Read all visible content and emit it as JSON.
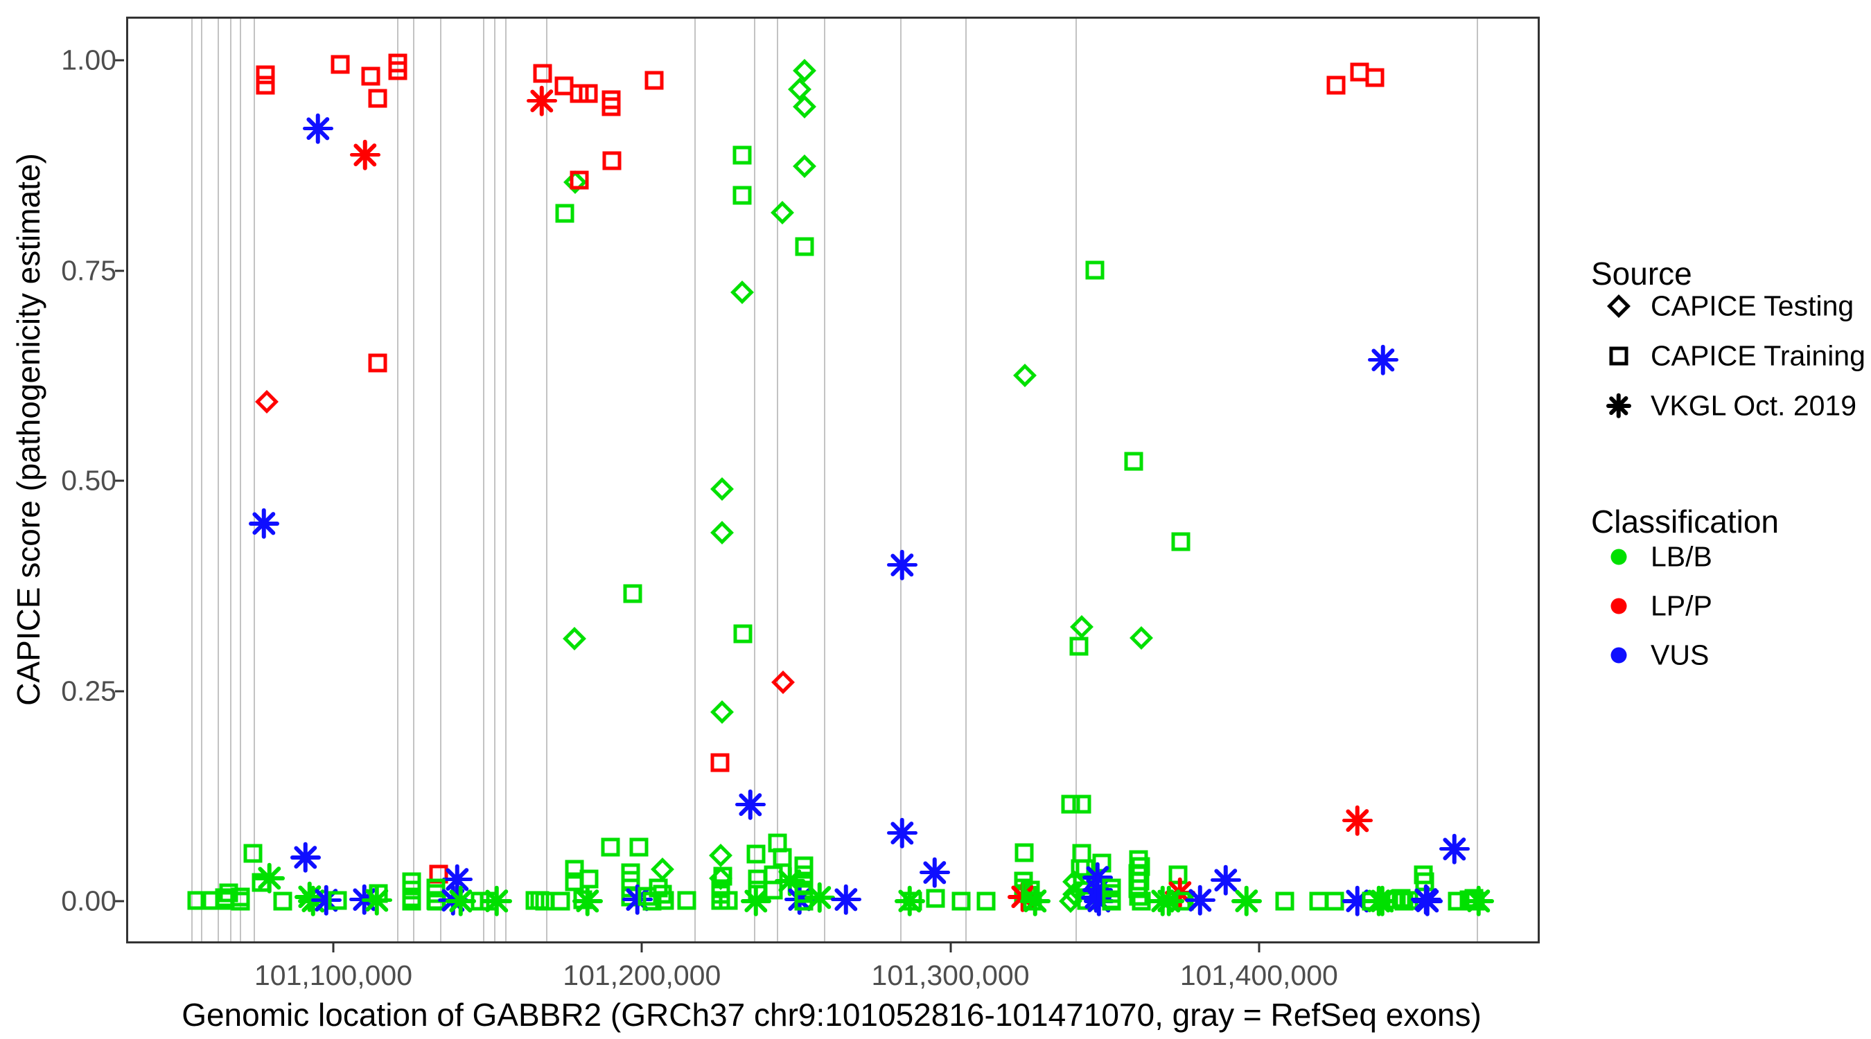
{
  "figure": {
    "kind": "ggplot-style scatter plot",
    "background": "#ffffff",
    "panel_border_color": "#333333",
    "exon_line_color": "#c3c3c3",
    "tick_label_color": "#4d4d4d"
  },
  "axes": {
    "x": {
      "label": "Genomic location of GABBR2 (GRCh37 chr9:101052816-101471070, gray = RefSeq exons)",
      "ticks": [
        {
          "value": 101100000,
          "label": "101,100,000"
        },
        {
          "value": 101200000,
          "label": "101,200,000"
        },
        {
          "value": 101300000,
          "label": "101,300,000"
        },
        {
          "value": 101400000,
          "label": "101,400,000"
        }
      ],
      "range": [
        101032850,
        101490990
      ]
    },
    "y": {
      "label": "CAPICE score (pathogenicity estimate)",
      "ticks": [
        {
          "value": 1.0,
          "label": "1.00"
        },
        {
          "value": 0.75,
          "label": "0.75"
        },
        {
          "value": 0.5,
          "label": "0.50"
        },
        {
          "value": 0.25,
          "label": "0.25"
        },
        {
          "value": 0.0,
          "label": "0.00"
        }
      ],
      "range": [
        -0.0503,
        1.0522
      ]
    }
  },
  "legend": {
    "source": {
      "title": "Source",
      "items": [
        {
          "label": "CAPICE Testing",
          "marker": "d"
        },
        {
          "label": "CAPICE Training",
          "marker": "s"
        },
        {
          "label": "VKGL Oct. 2019",
          "marker": "a"
        }
      ]
    },
    "classification": {
      "title": "Classification",
      "items": [
        {
          "label": "LB/B",
          "class": "g"
        },
        {
          "label": "LP/P",
          "class": "r"
        },
        {
          "label": "VUS",
          "class": "b"
        }
      ]
    }
  },
  "colors": {
    "g": "#00e000",
    "r": "#ff0000",
    "b": "#0f0fff",
    "legend_marker": "#000000"
  },
  "exons_bp": [
    101053500,
    101056700,
    101062050,
    101066100,
    101069250,
    101073700,
    101120200,
    101125400,
    101134100,
    101148050,
    101151650,
    101155250,
    101168500,
    101216550,
    101235900,
    101243300,
    101258550,
    101283250,
    101304400,
    101340100,
    101470150
  ],
  "chart_data": {
    "type": "scatter",
    "x_axis": "genomic position (bp, GRCh37 chr9)",
    "y_axis": "CAPICE score",
    "xlim": [
      101032850,
      101490990
    ],
    "ylim": [
      0,
      1
    ],
    "grid": "vertical gray exon lines only",
    "legend_position": "right",
    "marker_key": {
      "d": "CAPICE Testing (open diamond)",
      "s": "CAPICE Training (open square)",
      "a": "VKGL Oct. 2019 (asterisk)"
    },
    "class_key": {
      "g": "LB/B (green)",
      "r": "LP/P (red)",
      "b": "VUS (blue)"
    },
    "points": [
      [
        101078100,
        0.983,
        "s",
        "r"
      ],
      [
        101078100,
        0.971,
        "s",
        "r"
      ],
      [
        101102200,
        0.995,
        "s",
        "r"
      ],
      [
        101112200,
        0.981,
        "s",
        "r"
      ],
      [
        101114400,
        0.955,
        "s",
        "r"
      ],
      [
        101120800,
        0.997,
        "s",
        "r"
      ],
      [
        101120800,
        0.988,
        "s",
        "r"
      ],
      [
        101094970,
        0.919,
        "a",
        "b"
      ],
      [
        101110350,
        0.888,
        "a",
        "r"
      ],
      [
        101114400,
        0.64,
        "s",
        "r"
      ],
      [
        101078400,
        0.594,
        "d",
        "r"
      ],
      [
        101077500,
        0.449,
        "a",
        "b"
      ],
      [
        101167800,
        0.985,
        "s",
        "r"
      ],
      [
        101167700,
        0.952,
        "a",
        "r"
      ],
      [
        101174800,
        0.97,
        "s",
        "r"
      ],
      [
        101179800,
        0.961,
        "s",
        "r"
      ],
      [
        101182600,
        0.961,
        "s",
        "r"
      ],
      [
        101190000,
        0.953,
        "s",
        "r"
      ],
      [
        101190000,
        0.945,
        "s",
        "r"
      ],
      [
        101203900,
        0.976,
        "s",
        "r"
      ],
      [
        101178400,
        0.855,
        "d",
        "g"
      ],
      [
        101179800,
        0.858,
        "s",
        "r"
      ],
      [
        101190200,
        0.881,
        "s",
        "r"
      ],
      [
        101175000,
        0.818,
        "s",
        "g"
      ],
      [
        101232400,
        0.887,
        "s",
        "g"
      ],
      [
        101232400,
        0.84,
        "s",
        "g"
      ],
      [
        101252800,
        0.988,
        "d",
        "g"
      ],
      [
        101251200,
        0.966,
        "d",
        "g"
      ],
      [
        101252800,
        0.945,
        "d",
        "g"
      ],
      [
        101252600,
        0.874,
        "d",
        "g"
      ],
      [
        101245600,
        0.819,
        "d",
        "g"
      ],
      [
        101252600,
        0.779,
        "s",
        "g"
      ],
      [
        101232400,
        0.724,
        "d",
        "g"
      ],
      [
        101225900,
        0.49,
        "d",
        "g"
      ],
      [
        101225900,
        0.438,
        "d",
        "g"
      ],
      [
        101197000,
        0.366,
        "s",
        "g"
      ],
      [
        101178200,
        0.312,
        "d",
        "g"
      ],
      [
        101232700,
        0.318,
        "s",
        "g"
      ],
      [
        101245800,
        0.26,
        "d",
        "r"
      ],
      [
        101225900,
        0.225,
        "d",
        "g"
      ],
      [
        101225400,
        0.165,
        "s",
        "r"
      ],
      [
        101235300,
        0.115,
        "a",
        "b"
      ],
      [
        101284400,
        0.4,
        "a",
        "b"
      ],
      [
        101324100,
        0.625,
        "d",
        "g"
      ],
      [
        101346700,
        0.751,
        "s",
        "g"
      ],
      [
        101359300,
        0.523,
        "s",
        "g"
      ],
      [
        101374700,
        0.428,
        "s",
        "g"
      ],
      [
        101342600,
        0.326,
        "d",
        "g"
      ],
      [
        101361800,
        0.313,
        "d",
        "g"
      ],
      [
        101341700,
        0.303,
        "s",
        "g"
      ],
      [
        101424900,
        0.971,
        "s",
        "r"
      ],
      [
        101432600,
        0.986,
        "s",
        "r"
      ],
      [
        101437600,
        0.98,
        "s",
        "r"
      ],
      [
        101440200,
        0.644,
        "a",
        "b"
      ],
      [
        101431900,
        0.096,
        "a",
        "r"
      ],
      [
        101074000,
        0.057,
        "s",
        "g"
      ],
      [
        101091000,
        0.052,
        "a",
        "b"
      ],
      [
        101076700,
        0.022,
        "s",
        "g"
      ],
      [
        101079300,
        0.027,
        "a",
        "g"
      ],
      [
        101055800,
        0.001,
        "s",
        "g"
      ],
      [
        101060000,
        0.001,
        "s",
        "g"
      ],
      [
        101064700,
        0.004,
        "s",
        "g"
      ],
      [
        101066000,
        0.01,
        "s",
        "g"
      ],
      [
        101064900,
        0.001,
        "s",
        "g"
      ],
      [
        101069800,
        0.005,
        "s",
        "g"
      ],
      [
        101069800,
        0.0,
        "s",
        "g"
      ],
      [
        101083700,
        0.0,
        "s",
        "g"
      ],
      [
        101092300,
        0.005,
        "a",
        "g"
      ],
      [
        101093400,
        0.0,
        "a",
        "g"
      ],
      [
        101097800,
        0.001,
        "a",
        "b"
      ],
      [
        101101300,
        0.001,
        "s",
        "g"
      ],
      [
        101110100,
        0.002,
        "a",
        "b"
      ],
      [
        101114500,
        0.009,
        "s",
        "g"
      ],
      [
        101114100,
        0.001,
        "a",
        "g"
      ],
      [
        101125400,
        0.023,
        "s",
        "g"
      ],
      [
        101125400,
        0.013,
        "s",
        "g"
      ],
      [
        101125400,
        0.004,
        "s",
        "g"
      ],
      [
        101125400,
        0.0,
        "s",
        "g"
      ],
      [
        101134200,
        0.032,
        "s",
        "r"
      ],
      [
        101140100,
        0.026,
        "a",
        "b"
      ],
      [
        101133200,
        0.016,
        "s",
        "g"
      ],
      [
        101133200,
        0.009,
        "s",
        "g"
      ],
      [
        101133200,
        0.001,
        "s",
        "g"
      ],
      [
        101133400,
        0.0,
        "s",
        "g"
      ],
      [
        101138800,
        0.001,
        "a",
        "b"
      ],
      [
        101141300,
        0.0,
        "a",
        "g"
      ],
      [
        101147700,
        0.0,
        "s",
        "g"
      ],
      [
        101150500,
        0.0,
        "s",
        "g"
      ],
      [
        101152900,
        0.0,
        "a",
        "g"
      ],
      [
        101165300,
        0.001,
        "s",
        "g"
      ],
      [
        101166900,
        0.001,
        "s",
        "g"
      ],
      [
        101168500,
        0.0,
        "s",
        "g"
      ],
      [
        101173700,
        0.0,
        "s",
        "g"
      ],
      [
        101180900,
        0.002,
        "s",
        "g"
      ],
      [
        101182500,
        0.0,
        "a",
        "g"
      ],
      [
        101189800,
        0.064,
        "s",
        "g"
      ],
      [
        101199000,
        0.064,
        "s",
        "g"
      ],
      [
        101178100,
        0.038,
        "s",
        "g"
      ],
      [
        101178100,
        0.023,
        "s",
        "g"
      ],
      [
        101182900,
        0.026,
        "s",
        "g"
      ],
      [
        101196300,
        0.034,
        "s",
        "g"
      ],
      [
        101196300,
        0.025,
        "s",
        "g"
      ],
      [
        101196300,
        0.016,
        "s",
        "g"
      ],
      [
        101196300,
        0.005,
        "s",
        "g"
      ],
      [
        101198500,
        0.002,
        "a",
        "b"
      ],
      [
        101206600,
        0.038,
        "d",
        "g"
      ],
      [
        101205400,
        0.016,
        "s",
        "g"
      ],
      [
        101206600,
        0.008,
        "s",
        "g"
      ],
      [
        101207400,
        0.001,
        "s",
        "g"
      ],
      [
        101201800,
        0.006,
        "s",
        "g"
      ],
      [
        101203400,
        0.0,
        "s",
        "g"
      ],
      [
        101214600,
        0.001,
        "s",
        "g"
      ],
      [
        101225500,
        0.054,
        "d",
        "g"
      ],
      [
        101225500,
        0.027,
        "d",
        "g"
      ],
      [
        101226300,
        0.03,
        "s",
        "g"
      ],
      [
        101225500,
        0.015,
        "s",
        "g"
      ],
      [
        101225500,
        0.008,
        "s",
        "g"
      ],
      [
        101225500,
        0.001,
        "s",
        "g"
      ],
      [
        101237100,
        0.056,
        "s",
        "g"
      ],
      [
        101237500,
        0.026,
        "s",
        "g"
      ],
      [
        101237500,
        0.013,
        "s",
        "g"
      ],
      [
        101227900,
        0.001,
        "s",
        "g"
      ],
      [
        101237100,
        0.0,
        "a",
        "g"
      ],
      [
        101243900,
        0.069,
        "s",
        "g"
      ],
      [
        101245500,
        0.052,
        "s",
        "g"
      ],
      [
        101242700,
        0.031,
        "s",
        "g"
      ],
      [
        101242700,
        0.013,
        "s",
        "g"
      ],
      [
        101247900,
        0.024,
        "a",
        "g"
      ],
      [
        101251100,
        0.002,
        "a",
        "b"
      ],
      [
        101252400,
        0.042,
        "s",
        "g"
      ],
      [
        101252400,
        0.031,
        "s",
        "g"
      ],
      [
        101252400,
        0.02,
        "s",
        "g"
      ],
      [
        101252400,
        0.009,
        "s",
        "g"
      ],
      [
        101252400,
        0.0,
        "s",
        "g"
      ],
      [
        101257600,
        0.004,
        "a",
        "g"
      ],
      [
        101266200,
        0.002,
        "a",
        "b"
      ],
      [
        101284300,
        0.081,
        "a",
        "b"
      ],
      [
        101294900,
        0.034,
        "a",
        "b"
      ],
      [
        101286900,
        0.0,
        "a",
        "g"
      ],
      [
        101287700,
        0.0,
        "s",
        "g"
      ],
      [
        101295100,
        0.003,
        "s",
        "g"
      ],
      [
        101303500,
        0.0,
        "s",
        "g"
      ],
      [
        101311500,
        0.0,
        "s",
        "g"
      ],
      [
        101324000,
        0.058,
        "s",
        "g"
      ],
      [
        101323600,
        0.024,
        "s",
        "g"
      ],
      [
        101323600,
        0.016,
        "s",
        "g"
      ],
      [
        101323600,
        0.009,
        "s",
        "g"
      ],
      [
        101323500,
        0.005,
        "a",
        "r"
      ],
      [
        101325900,
        0.013,
        "s",
        "g"
      ],
      [
        101326700,
        0.0,
        "s",
        "g"
      ],
      [
        101327500,
        0.0,
        "a",
        "g"
      ],
      [
        101338900,
        0.115,
        "s",
        "g"
      ],
      [
        101342500,
        0.115,
        "s",
        "g"
      ],
      [
        101342500,
        0.057,
        "s",
        "g"
      ],
      [
        101342100,
        0.039,
        "s",
        "g"
      ],
      [
        101343700,
        0.039,
        "s",
        "g"
      ],
      [
        101349000,
        0.045,
        "s",
        "g"
      ],
      [
        101340000,
        0.023,
        "d",
        "g"
      ],
      [
        101340000,
        0.008,
        "d",
        "g"
      ],
      [
        101338900,
        0.0,
        "d",
        "g"
      ],
      [
        101342800,
        0.022,
        "s",
        "g"
      ],
      [
        101343500,
        0.012,
        "s",
        "g"
      ],
      [
        101344200,
        0.001,
        "s",
        "g"
      ],
      [
        101347700,
        0.028,
        "a",
        "b"
      ],
      [
        101347700,
        0.013,
        "a",
        "b"
      ],
      [
        101347300,
        0.004,
        "a",
        "b"
      ],
      [
        101348100,
        0.0,
        "a",
        "b"
      ],
      [
        101352100,
        0.016,
        "s",
        "g"
      ],
      [
        101352100,
        0.009,
        "s",
        "g"
      ],
      [
        101352100,
        0.002,
        "s",
        "g"
      ],
      [
        101352100,
        0.0,
        "s",
        "g"
      ],
      [
        101361000,
        0.049,
        "s",
        "g"
      ],
      [
        101361700,
        0.041,
        "s",
        "g"
      ],
      [
        101360800,
        0.033,
        "s",
        "g"
      ],
      [
        101361400,
        0.024,
        "s",
        "g"
      ],
      [
        101360800,
        0.015,
        "s",
        "g"
      ],
      [
        101361000,
        0.006,
        "s",
        "g"
      ],
      [
        101361900,
        0.0,
        "s",
        "g"
      ],
      [
        101373700,
        0.031,
        "s",
        "g"
      ],
      [
        101374500,
        0.01,
        "a",
        "r"
      ],
      [
        101368900,
        0.0,
        "a",
        "g"
      ],
      [
        101370900,
        0.0,
        "a",
        "g"
      ],
      [
        101374900,
        0.0,
        "s",
        "g"
      ],
      [
        101375700,
        0.0,
        "s",
        "g"
      ],
      [
        101380900,
        0.001,
        "a",
        "b"
      ],
      [
        101389300,
        0.025,
        "a",
        "b"
      ],
      [
        101396000,
        0.0,
        "a",
        "g"
      ],
      [
        101408300,
        0.0,
        "s",
        "g"
      ],
      [
        101419300,
        0.0,
        "s",
        "g"
      ],
      [
        101424600,
        0.0,
        "s",
        "g"
      ],
      [
        101431900,
        0.0,
        "a",
        "b"
      ],
      [
        101436400,
        0.0,
        "s",
        "g"
      ],
      [
        101438900,
        0.0,
        "a",
        "g"
      ],
      [
        101440100,
        0.0,
        "a",
        "g"
      ],
      [
        101444500,
        0.002,
        "s",
        "g"
      ],
      [
        101446100,
        0.003,
        "s",
        "g"
      ],
      [
        101446900,
        0.0,
        "s",
        "g"
      ],
      [
        101448500,
        0.001,
        "s",
        "g"
      ],
      [
        101453300,
        0.031,
        "s",
        "g"
      ],
      [
        101453700,
        0.023,
        "s",
        "g"
      ],
      [
        101454100,
        0.002,
        "a",
        "b"
      ],
      [
        101454500,
        0.0,
        "a",
        "b"
      ],
      [
        101463400,
        0.062,
        "a",
        "b"
      ],
      [
        101464200,
        0.0,
        "s",
        "g"
      ],
      [
        101468100,
        0.002,
        "s",
        "g"
      ],
      [
        101469700,
        0.003,
        "s",
        "g"
      ],
      [
        101470100,
        0.0,
        "s",
        "g"
      ],
      [
        101468900,
        0.0,
        "s",
        "g"
      ],
      [
        101471200,
        0.0,
        "a",
        "g"
      ]
    ]
  }
}
